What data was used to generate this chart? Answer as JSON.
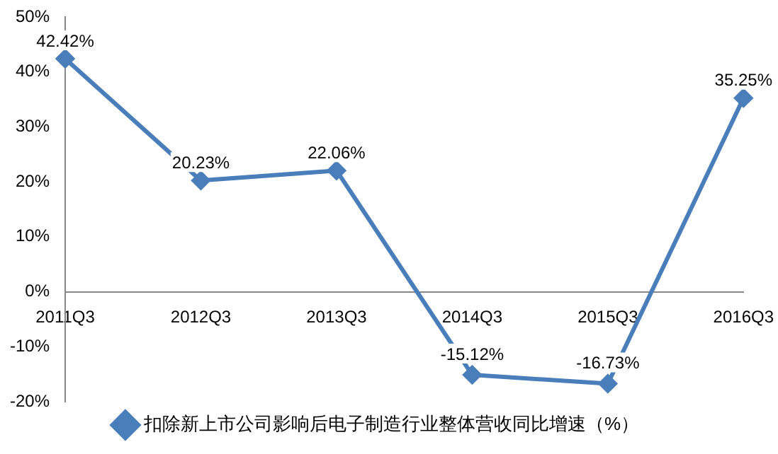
{
  "chart_data": {
    "type": "line",
    "categories": [
      "2011Q3",
      "2012Q3",
      "2013Q3",
      "2014Q3",
      "2015Q3",
      "2016Q3"
    ],
    "series": [
      {
        "name": "扣除新上市公司影响后电子制造行业整体营收同比增速（%）",
        "color": "#4a7ebb",
        "values": [
          42.42,
          20.23,
          22.06,
          -15.12,
          -16.73,
          35.25
        ],
        "value_labels": [
          "42.42%",
          "20.23%",
          "22.06%",
          "-15.12%",
          "-16.73%",
          "35.25%"
        ]
      }
    ],
    "ylim": [
      -20,
      50
    ],
    "yticks": [
      {
        "value": -20,
        "label": "-20%"
      },
      {
        "value": -10,
        "label": "-10%"
      },
      {
        "value": 0,
        "label": "0%"
      },
      {
        "value": 10,
        "label": "10%"
      },
      {
        "value": 20,
        "label": "20%"
      },
      {
        "value": 30,
        "label": "30%"
      },
      {
        "value": 40,
        "label": "40%"
      },
      {
        "value": 50,
        "label": "50%"
      }
    ],
    "grid": false,
    "legend": "bottom",
    "marker": "diamond",
    "line_style": "solid"
  }
}
